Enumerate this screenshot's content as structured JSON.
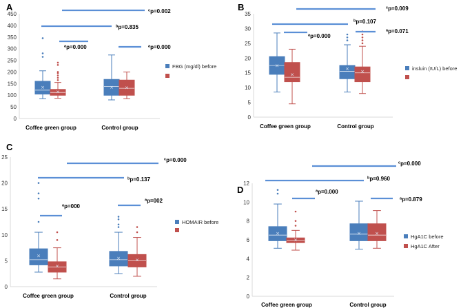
{
  "colors": {
    "before": "#4a7ebb",
    "after": "#c0504d",
    "sigline": "#5b8fd6",
    "axis": "#d9d9d9",
    "mean_marker": "#a9c2e6"
  },
  "chart_data": [
    {
      "letter": "A",
      "type": "box",
      "ylim": [
        0,
        450
      ],
      "yticks": [
        0,
        50,
        100,
        150,
        200,
        250,
        300,
        350,
        400,
        450
      ],
      "categories": [
        "Coffee green group",
        "Control group"
      ],
      "series": [
        {
          "name": "FBG (mg/dl) before",
          "color": "#4a7ebb",
          "boxes": [
            {
              "min": 85,
              "q1": 105,
              "median": 122,
              "q3": 160,
              "max": 205,
              "mean": 135,
              "outliers": [
                265,
                280,
                345
              ]
            },
            {
              "min": 80,
              "q1": 100,
              "median": 138,
              "q3": 168,
              "max": 273,
              "mean": 135,
              "outliers": []
            }
          ]
        },
        {
          "name": "",
          "color": "#c0504d",
          "boxes": [
            {
              "min": 87,
              "q1": 100,
              "median": 112,
              "q3": 125,
              "max": 155,
              "mean": 115,
              "outliers": [
                165,
                175,
                185,
                195,
                200,
                230,
                240
              ]
            },
            {
              "min": 85,
              "q1": 100,
              "median": 130,
              "q3": 165,
              "max": 200,
              "mean": 133,
              "outliers": []
            }
          ]
        }
      ],
      "legend": [
        "FBG (mg/dl) before",
        ""
      ],
      "pvalues": [
        {
          "sup": "c",
          "text": "p=0.002"
        },
        {
          "sup": "b",
          "text": "p=0.835"
        },
        {
          "sup": "a",
          "text": "p=0.000"
        },
        {
          "sup": "a",
          "text": "p=0.000"
        }
      ]
    },
    {
      "letter": "B",
      "type": "box",
      "ylim": [
        0,
        35
      ],
      "yticks": [
        0,
        5,
        10,
        15,
        20,
        25,
        30,
        35
      ],
      "categories": [
        "Coffee green group",
        "Control group"
      ],
      "series": [
        {
          "name": "insluin (IU/L) before",
          "color": "#4a7ebb",
          "boxes": [
            {
              "min": 8.5,
              "q1": 14.5,
              "median": 17.5,
              "q3": 20.5,
              "max": 28.5,
              "mean": 17.5,
              "outliers": []
            },
            {
              "min": 8.5,
              "q1": 13,
              "median": 15.5,
              "q3": 17.5,
              "max": 24.5,
              "mean": 16.5,
              "outliers": [
                26,
                27,
                28
              ]
            }
          ]
        },
        {
          "name": "",
          "color": "#c0504d",
          "boxes": [
            {
              "min": 4.5,
              "q1": 12,
              "median": 13.5,
              "q3": 18.5,
              "max": 23,
              "mean": 14.5,
              "outliers": []
            },
            {
              "min": 8,
              "q1": 12,
              "median": 15,
              "q3": 17,
              "max": 24,
              "mean": 15.5,
              "outliers": [
                25,
                26,
                27,
                28,
                29
              ]
            }
          ]
        }
      ],
      "legend": [
        "insluin (IU/L) before",
        ""
      ],
      "pvalues": [
        {
          "sup": "c",
          "text": "p=0.009"
        },
        {
          "sup": "b",
          "text": "p=0.107"
        },
        {
          "sup": "a",
          "text": "p=0.000"
        },
        {
          "sup": "a",
          "text": "p=0.071"
        }
      ]
    },
    {
      "letter": "C",
      "type": "box",
      "ylim": [
        0,
        25
      ],
      "yticks": [
        0,
        5,
        10,
        15,
        20,
        25
      ],
      "categories": [
        "Coffee green group",
        "Control group"
      ],
      "series": [
        {
          "name": "HOMAIR before",
          "color": "#4a7ebb",
          "boxes": [
            {
              "min": 2.8,
              "q1": 4.2,
              "median": 5.2,
              "q3": 7.3,
              "max": 10.5,
              "mean": 6,
              "outliers": [
                12.5,
                17,
                18,
                20
              ]
            },
            {
              "min": 2.5,
              "q1": 4,
              "median": 5.2,
              "q3": 6.8,
              "max": 10.5,
              "mean": 5.5,
              "outliers": [
                11.5,
                12,
                13,
                13.5
              ]
            }
          ]
        },
        {
          "name": "",
          "color": "#c0504d",
          "boxes": [
            {
              "min": 1.5,
              "q1": 2.8,
              "median": 3.8,
              "q3": 4.8,
              "max": 7.5,
              "mean": 4,
              "outliers": [
                9,
                10.5
              ]
            },
            {
              "min": 2,
              "q1": 3.8,
              "median": 5,
              "q3": 6.2,
              "max": 9.5,
              "mean": 5.2,
              "outliers": [
                10.5,
                11.5
              ]
            }
          ]
        }
      ],
      "legend": [
        "HOMAIR before",
        ""
      ],
      "pvalues": [
        {
          "sup": "c",
          "text": "p=0.000"
        },
        {
          "sup": "b",
          "text": "p=0.137"
        },
        {
          "sup": "a",
          "text": "p=000"
        },
        {
          "sup": "a",
          "text": "p=002"
        }
      ]
    },
    {
      "letter": "D",
      "type": "box",
      "ylim": [
        0,
        12
      ],
      "yticks": [
        0,
        2,
        4,
        6,
        8,
        10,
        12
      ],
      "categories": [
        "Coffee green group",
        "Control group"
      ],
      "series": [
        {
          "name": "HgA1C before",
          "color": "#4a7ebb",
          "boxes": [
            {
              "min": 5.1,
              "q1": 5.9,
              "median": 6.5,
              "q3": 7.4,
              "max": 9.8,
              "mean": 6.7,
              "outliers": [
                10.9,
                11.3
              ]
            },
            {
              "min": 5,
              "q1": 5.9,
              "median": 6.6,
              "q3": 7.7,
              "max": 10.1,
              "mean": 6.7,
              "outliers": []
            }
          ]
        },
        {
          "name": "HgA1C After",
          "color": "#c0504d",
          "boxes": [
            {
              "min": 4.9,
              "q1": 5.7,
              "median": 5.9,
              "q3": 6.2,
              "max": 7,
              "mean": 6,
              "outliers": [
                7.5,
                8,
                9
              ]
            },
            {
              "min": 5.1,
              "q1": 5.9,
              "median": 6.5,
              "q3": 7.7,
              "max": 9.1,
              "mean": 6.7,
              "outliers": []
            }
          ]
        }
      ],
      "legend": [
        "HgA1C before",
        "HgA1C After"
      ],
      "pvalues": [
        {
          "sup": "c",
          "text": "p=0.000"
        },
        {
          "sup": "b",
          "text": "p=0.960"
        },
        {
          "sup": "a",
          "text": "p=0.000"
        },
        {
          "sup": "a",
          "text": "p=0.879"
        }
      ]
    }
  ]
}
